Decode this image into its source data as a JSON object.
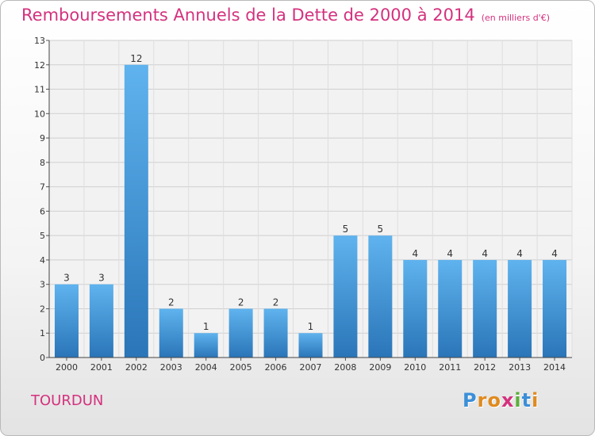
{
  "title": "Remboursements Annuels de la Dette de 2000 à 2014",
  "title_unit": "(en milliers d'€)",
  "city": "TOURDUN",
  "logo": {
    "letters": [
      "P",
      "r",
      "o",
      "x",
      "i",
      "t",
      "i"
    ],
    "colors": [
      "#3b8fd8",
      "#e08a1e",
      "#e08a1e",
      "#d4317e",
      "#5cae3c",
      "#3b8fd8",
      "#e08a1e"
    ]
  },
  "colors": {
    "accent": "#d4317e",
    "bar_top": "#5fb3ee",
    "bar_bottom": "#2a75b8"
  },
  "chart_data": {
    "type": "bar",
    "categories": [
      "2000",
      "2001",
      "2002",
      "2003",
      "2004",
      "2005",
      "2006",
      "2007",
      "2008",
      "2009",
      "2010",
      "2011",
      "2012",
      "2013",
      "2014"
    ],
    "values": [
      3,
      3,
      12,
      2,
      1,
      2,
      2,
      1,
      5,
      5,
      4,
      4,
      4,
      4,
      4
    ],
    "yticks": [
      0,
      1,
      2,
      3,
      4,
      5,
      6,
      7,
      8,
      9,
      10,
      11,
      12,
      13
    ],
    "ylim": [
      0,
      13
    ],
    "grid": true
  }
}
